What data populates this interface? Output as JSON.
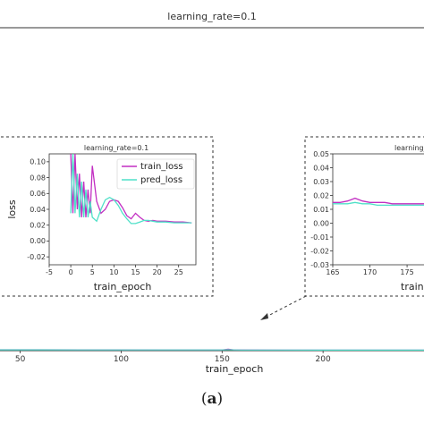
{
  "main_title": "learning_rate=0.1",
  "caption_paren_open": "(",
  "caption_letter": "a",
  "caption_paren_close": ")",
  "colors": {
    "train_loss": "#c22fc2",
    "pred_loss": "#4fe0c8",
    "axis": "#333333",
    "dash": "#333333"
  },
  "chart_data": [
    {
      "type": "line",
      "title": "learning_rate=0.1",
      "xlabel": "train_epoch",
      "ylabel": "",
      "xticks": [
        "50",
        "100",
        "150",
        "200"
      ],
      "xlim": [
        40,
        250
      ],
      "ylim": [
        0,
        1
      ],
      "grid": false,
      "series": [
        {
          "name": "train_loss",
          "x": [
            40,
            60,
            80,
            100,
            120,
            140,
            150,
            153,
            156,
            160,
            180,
            200,
            220,
            250
          ],
          "y": [
            0.02,
            0.02,
            0.018,
            0.017,
            0.016,
            0.016,
            0.016,
            0.03,
            0.016,
            0.015,
            0.014,
            0.013,
            0.013,
            0.012
          ]
        },
        {
          "name": "pred_loss",
          "x": [
            40,
            60,
            80,
            100,
            120,
            140,
            150,
            153,
            156,
            160,
            180,
            200,
            220,
            250
          ],
          "y": [
            0.018,
            0.018,
            0.016,
            0.015,
            0.015,
            0.015,
            0.015,
            0.02,
            0.015,
            0.014,
            0.013,
            0.012,
            0.012,
            0.011
          ]
        }
      ]
    },
    {
      "type": "line",
      "title": "learning_rate=0.1",
      "xlabel": "train_epoch",
      "ylabel": "loss",
      "xticks": [
        "-5",
        "0",
        "5",
        "10",
        "15",
        "20",
        "25"
      ],
      "yticks": [
        "-0.02",
        "0.00",
        "0.02",
        "0.04",
        "0.06",
        "0.08",
        "0.10"
      ],
      "xlim": [
        -5,
        29
      ],
      "ylim": [
        -0.03,
        0.11
      ],
      "grid": false,
      "legend": "top-right",
      "series": [
        {
          "name": "train_loss",
          "x": [
            0,
            0.5,
            1,
            1.5,
            2,
            2.5,
            3,
            3.5,
            4,
            4.5,
            5,
            6,
            7,
            8,
            9,
            10,
            11,
            12,
            13,
            14,
            15,
            16,
            17,
            18,
            19,
            20,
            22,
            24,
            26,
            28
          ],
          "y": [
            0.11,
            0.035,
            0.11,
            0.04,
            0.085,
            0.03,
            0.075,
            0.03,
            0.065,
            0.035,
            0.095,
            0.05,
            0.035,
            0.04,
            0.05,
            0.052,
            0.05,
            0.042,
            0.032,
            0.028,
            0.035,
            0.03,
            0.026,
            0.025,
            0.026,
            0.025,
            0.025,
            0.024,
            0.024,
            0.023
          ]
        },
        {
          "name": "pred_loss",
          "x": [
            0,
            0.5,
            1,
            1.5,
            2,
            2.5,
            3,
            3.5,
            4,
            4.5,
            5,
            6,
            7,
            8,
            9,
            10,
            11,
            12,
            13,
            14,
            15,
            16,
            17,
            18,
            19,
            20,
            22,
            24,
            26,
            28
          ],
          "y": [
            0.035,
            0.11,
            0.035,
            0.085,
            0.03,
            0.075,
            0.03,
            0.065,
            0.03,
            0.05,
            0.03,
            0.025,
            0.04,
            0.052,
            0.055,
            0.052,
            0.045,
            0.035,
            0.028,
            0.022,
            0.022,
            0.024,
            0.026,
            0.026,
            0.025,
            0.024,
            0.024,
            0.023,
            0.023,
            0.023
          ]
        }
      ]
    },
    {
      "type": "line",
      "title": "learning_",
      "xlabel": "train",
      "ylabel": "",
      "xticks": [
        "165",
        "170",
        "175"
      ],
      "yticks": [
        "-0.03",
        "-0.02",
        "-0.01",
        "0.00",
        "0.01",
        "0.02",
        "0.03",
        "0.04",
        "0.05"
      ],
      "xlim": [
        165,
        178
      ],
      "ylim": [
        -0.03,
        0.05
      ],
      "grid": false,
      "series": [
        {
          "name": "train_loss",
          "x": [
            165,
            166,
            167,
            168,
            169,
            170,
            171,
            172,
            173,
            174,
            175,
            176,
            177,
            178
          ],
          "y": [
            0.015,
            0.015,
            0.016,
            0.018,
            0.016,
            0.015,
            0.015,
            0.015,
            0.014,
            0.014,
            0.014,
            0.014,
            0.014,
            0.014
          ]
        },
        {
          "name": "pred_loss",
          "x": [
            165,
            166,
            167,
            168,
            169,
            170,
            171,
            172,
            173,
            174,
            175,
            176,
            177,
            178
          ],
          "y": [
            0.014,
            0.014,
            0.014,
            0.015,
            0.014,
            0.014,
            0.013,
            0.013,
            0.013,
            0.013,
            0.013,
            0.013,
            0.013,
            0.013
          ]
        }
      ]
    }
  ]
}
